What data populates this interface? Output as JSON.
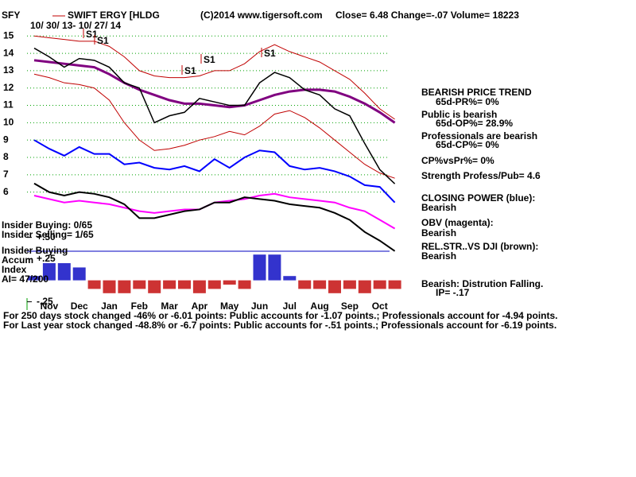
{
  "header": {
    "symbol": "SFY",
    "name": "SWIFT ERGY [HLDG",
    "copyright": "(C)2014 www.tigersoft.com",
    "quote": "Close=  6.48  Change=-.07 Volume= 18223",
    "dates": "10/ 30/ 13- 10/ 27/ 14"
  },
  "chart_data": [
    {
      "type": "line",
      "categories": [
        null,
        "Nov",
        null,
        "Dec",
        null,
        "Jan",
        null,
        "Feb",
        null,
        "Mar",
        null,
        "Apr",
        null,
        "May",
        null,
        "Jun",
        null,
        "Jul",
        null,
        "Aug",
        null,
        "Sep",
        null,
        "Oct",
        null
      ],
      "ylim": [
        2.5,
        15.7
      ],
      "yticks": [
        6,
        7,
        8,
        9,
        10,
        11,
        12,
        13,
        14,
        15
      ],
      "grid": true,
      "grid_color": "#00a000",
      "annotations": [
        "S1",
        "S1",
        "S1",
        "S1",
        "S1"
      ],
      "series": [
        {
          "color": "#c00000",
          "width": 1,
          "values": [
            15.0,
            14.9,
            14.8,
            14.7,
            14.7,
            14.4,
            13.8,
            13.0,
            12.7,
            12.6,
            12.6,
            12.7,
            13.0,
            13.0,
            13.4,
            14.1,
            14.5,
            14.1,
            13.8,
            13.5,
            13.0,
            12.5,
            11.7,
            10.8,
            10.2
          ]
        },
        {
          "color": "#c00000",
          "width": 1,
          "values": [
            12.8,
            12.6,
            12.3,
            12.2,
            12.0,
            11.3,
            10.0,
            9.0,
            8.4,
            8.5,
            8.7,
            9.0,
            9.2,
            9.5,
            9.3,
            9.8,
            10.5,
            10.7,
            10.3,
            9.7,
            9.0,
            8.3,
            7.6,
            7.1,
            6.8
          ]
        },
        {
          "color": "#800080",
          "width": 3,
          "values": [
            13.6,
            13.5,
            13.4,
            13.3,
            13.2,
            12.8,
            12.3,
            11.9,
            11.6,
            11.3,
            11.1,
            11.1,
            11.0,
            10.9,
            11.0,
            11.3,
            11.6,
            11.8,
            11.9,
            11.9,
            11.8,
            11.5,
            11.1,
            10.6,
            10.0
          ]
        },
        {
          "color": "#000000",
          "width": 1.5,
          "values": [
            14.3,
            13.8,
            13.2,
            13.7,
            13.6,
            13.2,
            12.3,
            12.0,
            10.0,
            10.4,
            10.6,
            11.4,
            11.2,
            11.0,
            11.0,
            12.3,
            12.9,
            12.6,
            11.9,
            11.6,
            10.8,
            10.4,
            8.8,
            7.3,
            6.48
          ]
        },
        {
          "color": "#0000ff",
          "width": 2,
          "values": [
            9.0,
            8.5,
            8.1,
            8.6,
            8.2,
            8.2,
            7.6,
            7.7,
            7.4,
            7.3,
            7.5,
            7.2,
            7.9,
            7.4,
            8.0,
            8.4,
            8.3,
            7.5,
            7.3,
            7.4,
            7.2,
            6.9,
            6.4,
            6.3,
            5.4
          ]
        },
        {
          "color": "#ff00ff",
          "width": 2,
          "values": [
            5.8,
            5.6,
            5.4,
            5.5,
            5.4,
            5.3,
            5.1,
            4.9,
            4.8,
            4.9,
            5.0,
            5.0,
            5.4,
            5.5,
            5.6,
            5.8,
            5.9,
            5.7,
            5.6,
            5.5,
            5.4,
            5.1,
            4.9,
            4.4,
            3.9
          ]
        },
        {
          "color": "#000000",
          "width": 2,
          "values": [
            6.5,
            6.0,
            5.8,
            6.0,
            5.9,
            5.7,
            5.3,
            4.5,
            4.5,
            4.7,
            4.9,
            5.0,
            5.4,
            5.4,
            5.7,
            5.6,
            5.5,
            5.3,
            5.2,
            5.1,
            4.8,
            4.4,
            3.7,
            3.2,
            2.6
          ]
        }
      ]
    },
    {
      "type": "bar",
      "ylim": [
        -0.3,
        0.58
      ],
      "yticks": [
        {
          "value": 0.5,
          "label": "+.50"
        },
        {
          "value": 0.25,
          "label": "+.25"
        },
        {
          "value": -0.25,
          "label": "-.25"
        }
      ],
      "pos_color": "#0000c0",
      "neg_color": "#c00000",
      "values": [
        0.05,
        0.2,
        0.2,
        0.15,
        -0.1,
        -0.15,
        -0.15,
        -0.1,
        -0.15,
        -0.1,
        -0.1,
        -0.15,
        -0.1,
        -0.05,
        -0.1,
        0.3,
        0.3,
        0.05,
        -0.1,
        -0.1,
        -0.15,
        -0.1,
        -0.15,
        -0.1,
        -0.1
      ]
    }
  ],
  "left": [
    "Insider Buying: 0/65",
    "Insider Selling= 1/65",
    "Insider Buying",
    "Accum",
    "Index",
    "AI= 47/200"
  ],
  "sidebar": [
    "BEARISH PRICE TREND",
    "65d-PR%= 0%",
    "Public is bearish",
    "65d-OP%= 28.9%",
    "Professionals are bearish",
    "65d-CP%= 0%",
    "CP%vsPr%=  0%",
    "Strength Profess/Pub= 4.6",
    "CLOSING POWER (blue):",
    "Bearish",
    "OBV (magenta):",
    "Bearish",
    "REL.STR..VS DJI (brown):",
    "Bearish",
    "Bearish: Distrution Falling.",
    "IP= -.17"
  ],
  "footer": [
    "For 250 days stock changed -46% or -6.01 points:  Public accounts for -1.07 points.;  Professionals account for -4.94 points.",
    "For Last year stock changed -48.8% or -6.7 points:  Public accounts for -.51 points.;  Professionals account for -6.19 points."
  ]
}
